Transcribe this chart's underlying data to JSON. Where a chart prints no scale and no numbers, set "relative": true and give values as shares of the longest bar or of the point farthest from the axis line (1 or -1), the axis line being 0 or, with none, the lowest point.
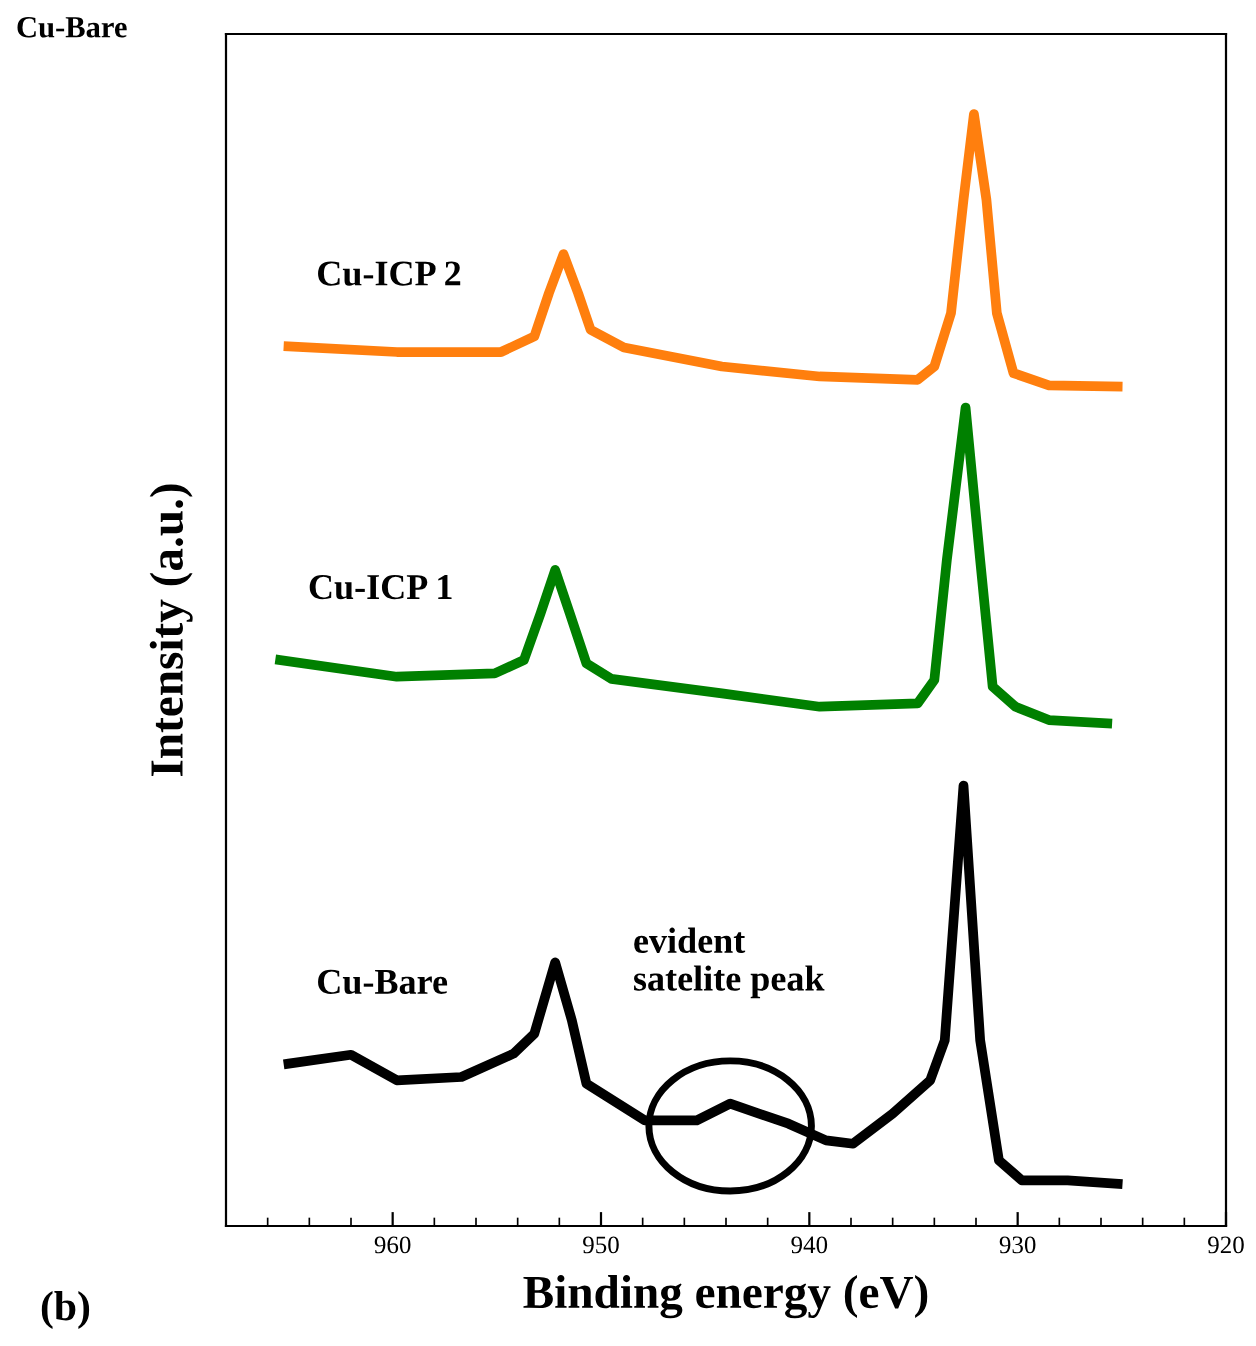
{
  "chart_data": {
    "type": "line",
    "relative": true,
    "xlabel": "Binding energy (eV)",
    "ylabel": "Intensity (a.u.)",
    "xlim": [
      968,
      920
    ],
    "xticks": [
      960,
      950,
      940,
      930,
      920
    ],
    "tick_labels": "x",
    "grid": false,
    "legend": false,
    "marker": "none",
    "line_style": "solid",
    "series": [
      {
        "name": "Cu-ICP 2",
        "color": "#ff7f0e",
        "x": [
          965.0,
          959.8,
          954.8,
          953.2,
          952.5,
          951.8,
          951.1,
          950.5,
          948.9,
          944.2,
          939.5,
          934.8,
          934.0,
          933.2,
          932.6,
          932.1,
          931.5,
          931.0,
          930.2,
          928.5,
          925.2
        ],
        "values": [
          0.791,
          0.786,
          0.786,
          0.8,
          0.839,
          0.874,
          0.839,
          0.806,
          0.79,
          0.773,
          0.764,
          0.761,
          0.773,
          0.821,
          0.923,
          1,
          0.923,
          0.821,
          0.767,
          0.756,
          0.755
        ]
      },
      {
        "name": "Cu-ICP 1",
        "color": "#008000",
        "x": [
          965.4,
          959.8,
          955.1,
          953.7,
          952.9,
          952.2,
          951.5,
          950.7,
          949.5,
          944.2,
          939.5,
          934.8,
          934.0,
          933.4,
          932.5,
          931.8,
          931.2,
          930.1,
          928.5,
          925.7
        ],
        "values": [
          0.509,
          0.494,
          0.497,
          0.509,
          0.551,
          0.59,
          0.551,
          0.506,
          0.492,
          0.479,
          0.467,
          0.47,
          0.491,
          0.599,
          0.736,
          0.599,
          0.485,
          0.467,
          0.455,
          0.452
        ]
      },
      {
        "name": "Cu-Bare",
        "color": "#000000",
        "x": [
          965.0,
          962.0,
          959.8,
          956.7,
          954.2,
          953.2,
          952.2,
          951.4,
          950.7,
          947.9,
          945.4,
          943.8,
          941.0,
          939.2,
          937.9,
          936.0,
          934.2,
          933.5,
          932.6,
          931.8,
          930.9,
          929.8,
          927.6,
          925.2
        ],
        "values": [
          0.146,
          0.154,
          0.131,
          0.134,
          0.155,
          0.173,
          0.237,
          0.185,
          0.128,
          0.095,
          0.095,
          0.11,
          0.092,
          0.077,
          0.074,
          0.101,
          0.131,
          0.167,
          0.396,
          0.167,
          0.059,
          0.041,
          0.041,
          0.038
        ]
      }
    ],
    "annotations": [
      "Cu-Bare",
      "(b)",
      {
        "text": "evident\nsatelite peak",
        "x": 943.8,
        "y": 0.11
      }
    ]
  }
}
